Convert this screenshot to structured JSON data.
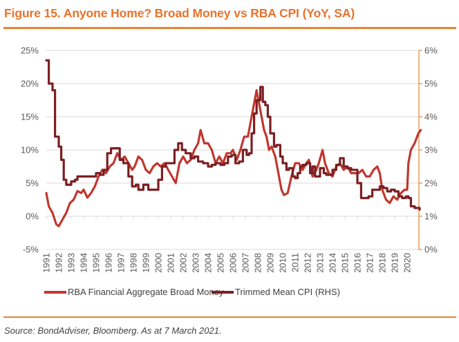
{
  "figure": {
    "title": "Figure 15. Anyone Home? Broad Money vs RBA CPI (YoY, SA)",
    "source": "Source: BondAdviser, Bloomberg. As at 7 March 2021.",
    "accent_color": "#E8732C"
  },
  "chart_data": {
    "type": "line",
    "title": "Figure 15. Anyone Home? Broad Money vs RBA CPI (YoY, SA)",
    "xlabel": "",
    "ylabel": "",
    "y2label": "",
    "grid": true,
    "legend_position": "bottom",
    "x_ticks": [
      "1991",
      "1992",
      "1993",
      "1994",
      "1995",
      "1996",
      "1997",
      "1998",
      "1999",
      "2000",
      "2001",
      "2002",
      "2003",
      "2004",
      "2005",
      "2006",
      "2007",
      "2008",
      "2009",
      "2010",
      "2011",
      "2012",
      "2013",
      "2014",
      "2015",
      "2016",
      "2017",
      "2018",
      "2019",
      "2020"
    ],
    "xlim": [
      1991,
      2021.2
    ],
    "ylim": [
      -5,
      25
    ],
    "y_ticks": [
      "-5%",
      "0%",
      "5%",
      "10%",
      "15%",
      "20%",
      "25%"
    ],
    "y_tick_values": [
      -5,
      0,
      5,
      10,
      15,
      20,
      25
    ],
    "y2lim": [
      0,
      6
    ],
    "y2_ticks": [
      "0%",
      "1%",
      "2%",
      "3%",
      "4%",
      "5%",
      "6%"
    ],
    "y2_tick_values": [
      0,
      1,
      2,
      3,
      4,
      5,
      6
    ],
    "series": [
      {
        "name": "RBA Financial Aggregate Broad Money",
        "axis": "left",
        "color": "#C0372F",
        "x": [
          1991.0,
          1991.2,
          1991.5,
          1991.8,
          1992.0,
          1992.3,
          1992.6,
          1992.9,
          1993.2,
          1993.5,
          1993.8,
          1994.0,
          1994.3,
          1994.6,
          1994.9,
          1995.2,
          1995.5,
          1995.8,
          1996.1,
          1996.4,
          1996.7,
          1997.0,
          1997.3,
          1997.6,
          1997.9,
          1998.1,
          1998.4,
          1998.7,
          1999.0,
          1999.3,
          1999.6,
          1999.9,
          2000.2,
          2000.5,
          2000.8,
          2001.1,
          2001.4,
          2001.7,
          2002.0,
          2002.3,
          2002.6,
          2002.9,
          2003.2,
          2003.4,
          2003.7,
          2004.0,
          2004.3,
          2004.6,
          2004.9,
          2005.2,
          2005.5,
          2005.8,
          2006.0,
          2006.3,
          2006.6,
          2006.9,
          2007.2,
          2007.5,
          2007.7,
          2007.9,
          2008.1,
          2008.3,
          2008.5,
          2008.7,
          2008.9,
          2009.1,
          2009.4,
          2009.7,
          2009.9,
          2010.1,
          2010.4,
          2010.7,
          2011.0,
          2011.3,
          2011.6,
          2011.9,
          2012.1,
          2012.4,
          2012.7,
          2012.9,
          2013.2,
          2013.4,
          2013.7,
          2014.0,
          2014.3,
          2014.6,
          2014.9,
          2015.2,
          2015.5,
          2015.8,
          2016.1,
          2016.4,
          2016.7,
          2017.0,
          2017.3,
          2017.6,
          2017.8,
          2018.0,
          2018.3,
          2018.6,
          2018.9,
          2019.2,
          2019.5,
          2019.8,
          2020.0,
          2020.1,
          2020.3,
          2020.6,
          2020.9,
          2021.1
        ],
        "values": [
          3.5,
          1.5,
          0.5,
          -1.2,
          -1.5,
          -0.5,
          0.5,
          2,
          2.5,
          3.8,
          3.5,
          4,
          2.8,
          3.5,
          4.5,
          6,
          7,
          6.5,
          7.5,
          8,
          9.5,
          8.5,
          9,
          8,
          7,
          7.5,
          9,
          8.5,
          7,
          6.5,
          7.5,
          8,
          7.5,
          8,
          7,
          6,
          5,
          8,
          9,
          8,
          8.5,
          10,
          11,
          13,
          11,
          11,
          10,
          8,
          9,
          8,
          9.5,
          9.5,
          10,
          8.5,
          10,
          12,
          12,
          15,
          17,
          19,
          17,
          15,
          13,
          12,
          10,
          10.5,
          9,
          6,
          4,
          3.2,
          3.5,
          6,
          8,
          8,
          7,
          8,
          8.5,
          6,
          7,
          8,
          10,
          8,
          6.5,
          6,
          7.5,
          8,
          7,
          7.5,
          6.5,
          6.5,
          6.5,
          7,
          6,
          6,
          7,
          7.5,
          6.5,
          4,
          2.5,
          2,
          3,
          2.5,
          3.5,
          4,
          4,
          8,
          10,
          11,
          12.5,
          13
        ]
      },
      {
        "name": "Trimmed Mean CPI (RHS)",
        "axis": "right",
        "color": "#7B1F22",
        "x": [
          1991.0,
          1991.2,
          1991.5,
          1991.7,
          1992.0,
          1992.2,
          1992.4,
          1992.6,
          1993.0,
          1993.3,
          1993.5,
          1994.5,
          1995.0,
          1995.3,
          1995.6,
          1995.9,
          1996.2,
          1996.6,
          1996.9,
          1997.2,
          1997.6,
          1997.9,
          1998.2,
          1998.4,
          1998.8,
          1999.2,
          1999.6,
          2000.0,
          2000.3,
          2000.6,
          2000.9,
          2001.3,
          2001.6,
          2001.9,
          2002.2,
          2002.6,
          2002.9,
          2003.2,
          2003.6,
          2004.0,
          2004.3,
          2004.6,
          2005.0,
          2005.3,
          2005.6,
          2005.9,
          2006.2,
          2006.5,
          2006.8,
          2007.1,
          2007.3,
          2007.5,
          2007.7,
          2007.9,
          2008.2,
          2008.4,
          2008.6,
          2008.8,
          2009.0,
          2009.3,
          2009.5,
          2009.8,
          2010.0,
          2010.3,
          2010.5,
          2010.8,
          2011.0,
          2011.2,
          2011.4,
          2011.6,
          2011.9,
          2012.2,
          2012.4,
          2012.6,
          2013.0,
          2013.3,
          2013.5,
          2014.0,
          2014.3,
          2014.6,
          2014.9,
          2015.2,
          2015.5,
          2015.8,
          2016.0,
          2016.3,
          2016.6,
          2016.9,
          2017.2,
          2017.5,
          2017.8,
          2018.1,
          2018.4,
          2018.7,
          2019.0,
          2019.3,
          2019.6,
          2019.9,
          2020.1,
          2020.3,
          2020.6,
          2021.0
        ],
        "values": [
          5.7,
          5.0,
          4.8,
          3.4,
          3.1,
          2.7,
          2.1,
          1.95,
          2.05,
          2.1,
          2.2,
          2.2,
          2.3,
          2.25,
          2.4,
          2.9,
          3.05,
          3.05,
          2.7,
          2.6,
          2.2,
          1.9,
          1.95,
          1.8,
          1.95,
          1.8,
          1.8,
          2.1,
          2.5,
          2.6,
          2.6,
          3.0,
          3.2,
          3.0,
          2.9,
          2.75,
          2.8,
          2.65,
          2.6,
          2.5,
          2.55,
          2.6,
          2.55,
          2.6,
          2.8,
          2.85,
          2.6,
          2.65,
          3.0,
          2.85,
          2.9,
          3.5,
          4.1,
          4.5,
          4.9,
          4.45,
          4.35,
          4.0,
          3.5,
          3.1,
          3.15,
          2.8,
          2.6,
          2.4,
          2.45,
          2.2,
          2.15,
          2.3,
          2.5,
          2.55,
          2.6,
          2.3,
          2.5,
          2.2,
          2.45,
          2.3,
          2.25,
          2.4,
          2.55,
          2.75,
          2.5,
          2.45,
          2.4,
          2.4,
          2.0,
          1.55,
          1.55,
          1.6,
          1.8,
          1.8,
          1.9,
          1.85,
          1.75,
          1.8,
          1.75,
          1.6,
          1.55,
          1.6,
          1.55,
          1.3,
          1.25,
          1.2
        ]
      }
    ]
  }
}
